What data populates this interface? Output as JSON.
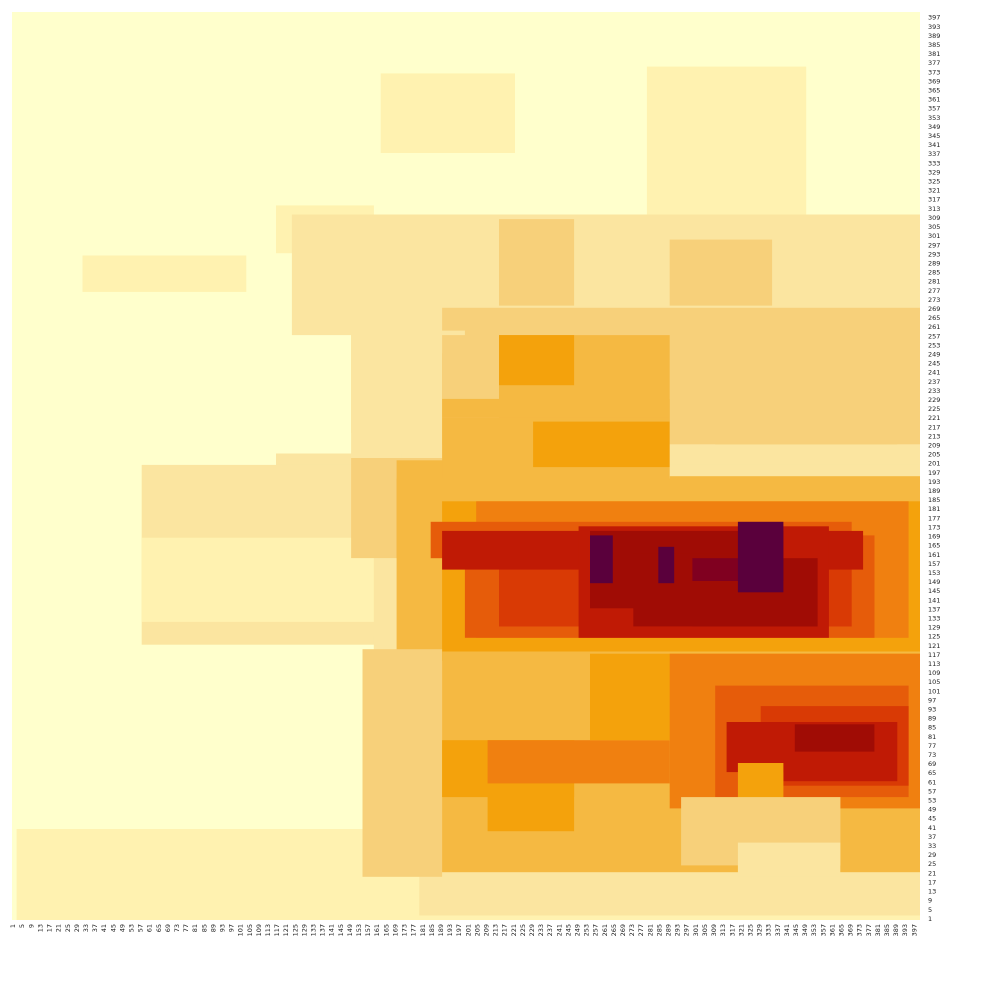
{
  "chart_data": {
    "type": "heatmap",
    "title": "",
    "xlabel": "",
    "ylabel": "",
    "x_range": [
      1,
      400
    ],
    "y_range": [
      1,
      400
    ],
    "x_tick_labels": [
      "1",
      "5",
      "9",
      "13",
      "17",
      "21",
      "25",
      "29",
      "33",
      "37",
      "41",
      "45",
      "49",
      "53",
      "57",
      "61",
      "65",
      "69",
      "73",
      "77",
      "81",
      "85",
      "89",
      "93",
      "97",
      "101",
      "105",
      "109",
      "113",
      "117",
      "121",
      "125",
      "129",
      "133",
      "137",
      "141",
      "145",
      "149",
      "153",
      "157",
      "161",
      "165",
      "169",
      "173",
      "177",
      "181",
      "185",
      "189",
      "193",
      "197",
      "201",
      "205",
      "209",
      "213",
      "217",
      "221",
      "225",
      "229",
      "233",
      "237",
      "241",
      "245",
      "249",
      "253",
      "257",
      "261",
      "265",
      "269",
      "273",
      "277",
      "281",
      "285",
      "289",
      "293",
      "297",
      "301",
      "305",
      "309",
      "313",
      "317",
      "321",
      "325",
      "329",
      "333",
      "337",
      "341",
      "345",
      "349",
      "353",
      "357",
      "361",
      "365",
      "369",
      "373",
      "377",
      "381",
      "385",
      "389",
      "393",
      "397"
    ],
    "y_tick_labels": [
      "1",
      "5",
      "9",
      "13",
      "17",
      "21",
      "25",
      "29",
      "33",
      "37",
      "41",
      "45",
      "49",
      "53",
      "57",
      "61",
      "65",
      "69",
      "73",
      "77",
      "81",
      "85",
      "89",
      "93",
      "97",
      "101",
      "105",
      "109",
      "113",
      "117",
      "121",
      "125",
      "129",
      "133",
      "137",
      "141",
      "145",
      "149",
      "153",
      "157",
      "161",
      "165",
      "169",
      "173",
      "177",
      "181",
      "185",
      "189",
      "193",
      "197",
      "201",
      "205",
      "209",
      "213",
      "217",
      "221",
      "225",
      "229",
      "233",
      "237",
      "241",
      "245",
      "249",
      "253",
      "257",
      "261",
      "265",
      "269",
      "273",
      "277",
      "281",
      "285",
      "289",
      "293",
      "297",
      "301",
      "305",
      "309",
      "313",
      "317",
      "321",
      "325",
      "329",
      "333",
      "337",
      "341",
      "345",
      "349",
      "353",
      "357",
      "361",
      "365",
      "369",
      "373",
      "377",
      "381",
      "385",
      "389",
      "393",
      "397"
    ],
    "y_axis_side": "right",
    "legend": "none",
    "colorscale": [
      "#ffffcc",
      "#fff2b0",
      "#fbe5a0",
      "#f7d07a",
      "#f5b942",
      "#f4a20c",
      "#f08010",
      "#e65c0a",
      "#d93a05",
      "#c01a05",
      "#a00c05",
      "#800020",
      "#5a003c"
    ],
    "background_level": 0,
    "regions": [
      {
        "x": [
          3,
          400
        ],
        "y": [
          1,
          41
        ],
        "level": 1
      },
      {
        "x": [
          190,
          400
        ],
        "y": [
          1,
          13
        ],
        "level": 1
      },
      {
        "x": [
          117,
          160
        ],
        "y": [
          294,
          315
        ],
        "level": 1
      },
      {
        "x": [
          32,
          104
        ],
        "y": [
          277,
          293
        ],
        "level": 1
      },
      {
        "x": [
          163,
          222
        ],
        "y": [
          338,
          373
        ],
        "level": 1
      },
      {
        "x": [
          280,
          350
        ],
        "y": [
          263,
          376
        ],
        "level": 1
      },
      {
        "x": [
          124,
          400
        ],
        "y": [
          258,
          311
        ],
        "level": 2
      },
      {
        "x": [
          150,
          400
        ],
        "y": [
          163,
          271
        ],
        "level": 2
      },
      {
        "x": [
          117,
          172
        ],
        "y": [
          171,
          206
        ],
        "level": 2
      },
      {
        "x": [
          58,
          400
        ],
        "y": [
          122,
          201
        ],
        "level": 2
      },
      {
        "x": [
          58,
          160
        ],
        "y": [
          132,
          169
        ],
        "level": 1
      },
      {
        "x": [
          160,
          400
        ],
        "y": [
          20,
          126
        ],
        "level": 2
      },
      {
        "x": [
          180,
          400
        ],
        "y": [
          3,
          45
        ],
        "level": 2
      },
      {
        "x": [
          215,
          248
        ],
        "y": [
          271,
          309
        ],
        "level": 3
      },
      {
        "x": [
          290,
          335
        ],
        "y": [
          271,
          300
        ],
        "level": 3
      },
      {
        "x": [
          190,
          400
        ],
        "y": [
          253,
          270
        ],
        "level": 3
      },
      {
        "x": [
          150,
          200
        ],
        "y": [
          215,
          260
        ],
        "level": 2
      },
      {
        "x": [
          190,
          400
        ],
        "y": [
          210,
          258
        ],
        "level": 3
      },
      {
        "x": [
          310,
          390
        ],
        "y": [
          210,
          232
        ],
        "level": 3
      },
      {
        "x": [
          190,
          248
        ],
        "y": [
          230,
          250
        ],
        "level": 3
      },
      {
        "x": [
          215,
          290
        ],
        "y": [
          220,
          258
        ],
        "level": 4
      },
      {
        "x": [
          215,
          248
        ],
        "y": [
          236,
          258
        ],
        "level": 5
      },
      {
        "x": [
          190,
          290
        ],
        "y": [
          222,
          230
        ],
        "level": 4
      },
      {
        "x": [
          150,
          190
        ],
        "y": [
          160,
          204
        ],
        "level": 3
      },
      {
        "x": [
          170,
          200
        ],
        "y": [
          160,
          203
        ],
        "level": 4
      },
      {
        "x": [
          190,
          290
        ],
        "y": [
          192,
          222
        ],
        "level": 4
      },
      {
        "x": [
          230,
          290
        ],
        "y": [
          200,
          220
        ],
        "level": 5
      },
      {
        "x": [
          290,
          400
        ],
        "y": [
          170,
          196
        ],
        "level": 4
      },
      {
        "x": [
          170,
          400
        ],
        "y": [
          115,
          195
        ],
        "level": 4
      },
      {
        "x": [
          190,
          400
        ],
        "y": [
          115,
          185
        ],
        "level": 5
      },
      {
        "x": [
          205,
          395
        ],
        "y": [
          125,
          185
        ],
        "level": 6
      },
      {
        "x": [
          185,
          370
        ],
        "y": [
          160,
          176
        ],
        "level": 7
      },
      {
        "x": [
          200,
          380
        ],
        "y": [
          125,
          170
        ],
        "level": 7
      },
      {
        "x": [
          215,
          370
        ],
        "y": [
          130,
          168
        ],
        "level": 8
      },
      {
        "x": [
          240,
          360
        ],
        "y": [
          140,
          168
        ],
        "level": 8
      },
      {
        "x": [
          190,
          375
        ],
        "y": [
          155,
          172
        ],
        "level": 9
      },
      {
        "x": [
          250,
          360
        ],
        "y": [
          125,
          174
        ],
        "level": 9
      },
      {
        "x": [
          255,
          340
        ],
        "y": [
          138,
          172
        ],
        "level": 10
      },
      {
        "x": [
          274,
          320
        ],
        "y": [
          130,
          162
        ],
        "level": 10
      },
      {
        "x": [
          300,
          355
        ],
        "y": [
          130,
          160
        ],
        "level": 10
      },
      {
        "x": [
          255,
          265
        ],
        "y": [
          149,
          170
        ],
        "level": 12
      },
      {
        "x": [
          300,
          340
        ],
        "y": [
          150,
          160
        ],
        "level": 11
      },
      {
        "x": [
          320,
          340
        ],
        "y": [
          145,
          176
        ],
        "level": 12
      },
      {
        "x": [
          285,
          292
        ],
        "y": [
          149,
          165
        ],
        "level": 12
      },
      {
        "x": [
          155,
          190
        ],
        "y": [
          20,
          120
        ],
        "level": 3
      },
      {
        "x": [
          190,
          400
        ],
        "y": [
          22,
          119
        ],
        "level": 4
      },
      {
        "x": [
          190,
          248
        ],
        "y": [
          55,
          80
        ],
        "level": 5
      },
      {
        "x": [
          210,
          248
        ],
        "y": [
          40,
          80
        ],
        "level": 5
      },
      {
        "x": [
          210,
          290
        ],
        "y": [
          61,
          80
        ],
        "level": 6
      },
      {
        "x": [
          255,
          400
        ],
        "y": [
          80,
          118
        ],
        "level": 5
      },
      {
        "x": [
          290,
          400
        ],
        "y": [
          50,
          118
        ],
        "level": 6
      },
      {
        "x": [
          310,
          395
        ],
        "y": [
          55,
          104
        ],
        "level": 7
      },
      {
        "x": [
          330,
          395
        ],
        "y": [
          60,
          95
        ],
        "level": 8
      },
      {
        "x": [
          340,
          390
        ],
        "y": [
          62,
          88
        ],
        "level": 9
      },
      {
        "x": [
          345,
          380
        ],
        "y": [
          75,
          87
        ],
        "level": 10
      },
      {
        "x": [
          315,
          340
        ],
        "y": [
          66,
          88
        ],
        "level": 9
      },
      {
        "x": [
          320,
          340
        ],
        "y": [
          35,
          70
        ],
        "level": 5
      },
      {
        "x": [
          295,
          365
        ],
        "y": [
          25,
          55
        ],
        "level": 3
      },
      {
        "x": [
          320,
          365
        ],
        "y": [
          20,
          35
        ],
        "level": 2
      }
    ]
  }
}
